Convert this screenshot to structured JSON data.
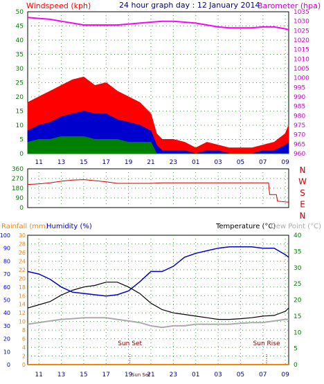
{
  "header": {
    "left_label": "Windspeed (kph)",
    "title": "24 hour graph day : 12 January 2014",
    "right_label": "Barometer (hpa)"
  },
  "colors": {
    "wind_gust": "#ff0000",
    "wind_avg": "#0000cc",
    "wind_low": "#008000",
    "barometer": "#ff00ff",
    "direction": "#cc0000",
    "rainfall": "#ff8000",
    "humidity": "#0000cc",
    "temperature": "#000000",
    "dewpoint": "#aaaaaa",
    "axis_green": "#008000",
    "grid": "#40a040",
    "dir_letters": "#cc0000"
  },
  "x_ticks": [
    "11",
    "13",
    "15",
    "17",
    "19",
    "21",
    "23",
    "01",
    "03",
    "05",
    "07",
    "09"
  ],
  "x_ticks_bottom": [
    "11",
    "13",
    "15",
    "17",
    "19",
    "Sun Set",
    "21",
    "23",
    "01",
    "03",
    "05",
    "07",
    "09"
  ],
  "chart_data": [
    {
      "type": "line",
      "name": "wind-barometer",
      "left_axis": {
        "label": "Windspeed (kph)",
        "ticks": [
          0,
          5,
          10,
          15,
          20,
          25,
          30,
          35,
          40,
          45,
          50
        ],
        "range": [
          0,
          50
        ]
      },
      "right_axis": {
        "label": "Barometer (hpa)",
        "ticks": [
          960,
          965,
          970,
          975,
          980,
          985,
          990,
          995,
          1000,
          1005,
          1010,
          1015,
          1020,
          1025,
          1030,
          1035
        ],
        "range": [
          960,
          1035
        ]
      },
      "series": [
        {
          "name": "barometer",
          "x": [
            10.0,
            11,
            12,
            13,
            14,
            15,
            16,
            17,
            18,
            19,
            20,
            21,
            22,
            23,
            24,
            25,
            26,
            27,
            28,
            29,
            30,
            31,
            32,
            33,
            33.3
          ],
          "y": [
            1032,
            1031.5,
            1031,
            1030,
            1029,
            1028,
            1028,
            1028,
            1028,
            1028.5,
            1029,
            1029.5,
            1030,
            1030,
            1029.5,
            1029,
            1028,
            1027,
            1026.5,
            1026.5,
            1026.5,
            1027,
            1027,
            1026,
            1025.5
          ]
        },
        {
          "name": "gust",
          "x": [
            10.0,
            11,
            12,
            13,
            14,
            15,
            16,
            17,
            18,
            19,
            20,
            21,
            21.5,
            22,
            23,
            24,
            25,
            26,
            27,
            28,
            29,
            30,
            31,
            32,
            33,
            33.3
          ],
          "y": [
            18,
            20,
            22,
            24,
            26,
            27,
            24,
            25,
            22,
            20,
            18,
            14,
            7,
            5,
            5,
            4,
            2,
            4,
            3,
            2,
            2,
            2,
            3,
            4,
            7,
            10
          ]
        },
        {
          "name": "average",
          "x": [
            10.0,
            11,
            12,
            13,
            14,
            15,
            16,
            17,
            18,
            19,
            20,
            21,
            21.5,
            22,
            23,
            24,
            25,
            26,
            27,
            28,
            29,
            30,
            31,
            32,
            33,
            33.3
          ],
          "y": [
            8,
            10,
            11,
            13,
            14,
            15,
            14,
            14,
            12,
            11,
            10,
            8,
            3,
            1,
            1,
            1,
            0,
            1,
            1,
            0,
            0,
            0,
            1,
            1,
            3,
            4
          ]
        },
        {
          "name": "low",
          "x": [
            10.0,
            11,
            12,
            13,
            14,
            15,
            16,
            17,
            18,
            19,
            20,
            21,
            21.5,
            22,
            33.3
          ],
          "y": [
            4,
            5,
            5,
            6,
            6,
            6,
            5,
            5,
            5,
            4,
            4,
            4,
            0,
            0,
            0
          ]
        }
      ]
    },
    {
      "type": "line",
      "name": "wind-direction",
      "left_axis": {
        "ticks": [
          0,
          90,
          180,
          270,
          360
        ],
        "range": [
          0,
          360
        ]
      },
      "right_labels": [
        "N",
        "W",
        "S",
        "E",
        "N"
      ],
      "series": [
        {
          "name": "direction",
          "x": [
            10.0,
            11,
            12,
            13,
            14,
            15,
            16,
            17,
            18,
            19,
            20,
            21,
            22,
            31.5,
            31.6,
            32.2,
            32.3,
            33.3
          ],
          "y": [
            215,
            220,
            230,
            245,
            255,
            260,
            250,
            240,
            225,
            225,
            225,
            225,
            230,
            230,
            120,
            120,
            60,
            50
          ]
        }
      ]
    },
    {
      "type": "line",
      "name": "temp-humidity-rain",
      "axis_rain": {
        "label": "Rainfall (mm)",
        "ticks": [
          0,
          2,
          4,
          6,
          8,
          10,
          12,
          14,
          16,
          18,
          20,
          22,
          24,
          26,
          28,
          30
        ],
        "range": [
          0,
          30
        ]
      },
      "axis_humidity": {
        "label": "Humidity (%)",
        "ticks": [
          0,
          10,
          20,
          30,
          40,
          50,
          60,
          70,
          80,
          90,
          100
        ],
        "range": [
          0,
          100
        ]
      },
      "axis_temp": {
        "label": "Temperature (°C)",
        "ticks": [
          0,
          5,
          10,
          15,
          20,
          25,
          30,
          35,
          40
        ],
        "range": [
          0,
          40
        ]
      },
      "dewpoint_label": "Dew Point (°C)",
      "annotations": [
        {
          "text": "Sun Set",
          "x": 19.0
        },
        {
          "text": "Sun Rise",
          "x": 31.2
        }
      ],
      "series": [
        {
          "name": "temperature",
          "x": [
            10.0,
            11,
            12,
            13,
            14,
            15,
            16,
            17,
            18,
            19,
            20,
            21,
            22,
            23,
            24,
            25,
            26,
            27,
            28,
            29,
            30,
            31,
            32,
            33,
            33.3
          ],
          "y": [
            17.5,
            18.5,
            19.5,
            21.5,
            23,
            24,
            24.5,
            25.5,
            25.5,
            24,
            22,
            19,
            17,
            16,
            15.5,
            15,
            14.5,
            14,
            14,
            14.2,
            14.5,
            15,
            15.2,
            16.5,
            17.5
          ]
        },
        {
          "name": "humidity",
          "x": [
            10.0,
            11,
            12,
            13,
            14,
            15,
            16,
            17,
            18,
            19,
            20,
            21,
            22,
            23,
            24,
            25,
            26,
            27,
            28,
            29,
            30,
            31,
            32,
            33,
            33.3
          ],
          "y": [
            72,
            70,
            66,
            60,
            56,
            55,
            54,
            53,
            54,
            57,
            64,
            72,
            72,
            76,
            83,
            86,
            88,
            90,
            91,
            91,
            91,
            90,
            90,
            85,
            83
          ]
        },
        {
          "name": "dewpoint",
          "x": [
            10.0,
            11,
            12,
            13,
            14,
            15,
            16,
            17,
            18,
            19,
            20,
            21,
            22,
            23,
            24,
            25,
            26,
            27,
            28,
            29,
            30,
            31,
            32,
            33,
            33.3
          ],
          "y": [
            12.5,
            13,
            13.5,
            14,
            14.2,
            14.5,
            14.5,
            14.5,
            14,
            13.5,
            13,
            12,
            11.5,
            12,
            12,
            12.5,
            12.5,
            12.5,
            12.5,
            12.8,
            13,
            13,
            13.5,
            14,
            14
          ]
        },
        {
          "name": "rainfall",
          "x": [
            10.0,
            33.3
          ],
          "y": [
            0,
            0
          ]
        }
      ]
    }
  ]
}
